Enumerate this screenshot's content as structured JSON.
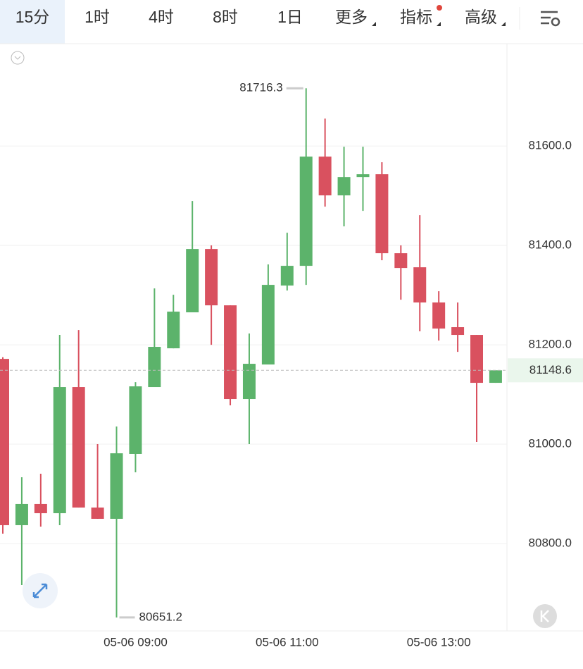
{
  "toolbar": {
    "tabs": [
      "15分",
      "1时",
      "4时",
      "8时",
      "1日",
      "更多",
      "指标",
      "高级"
    ]
  },
  "chart_data": {
    "type": "candlestick",
    "categories": [
      null,
      null,
      null,
      null,
      null,
      null,
      null,
      "05-06 09:00",
      null,
      null,
      null,
      null,
      null,
      null,
      null,
      "05-06 11:00",
      null,
      null,
      null,
      null,
      null,
      null,
      null,
      "05-06 13:00",
      null,
      null,
      null
    ],
    "open": [
      81171.6,
      80836.9,
      80879.5,
      80861,
      81114.9,
      80872.4,
      80849.7,
      80980.2,
      81114.9,
      81192.9,
      81265.3,
      81392.9,
      81279.4,
      81090.8,
      81160.3,
      81319.2,
      81358.9,
      81578.7,
      81500.7,
      81537.6,
      81543.3,
      81384.4,
      81356,
      81285.1,
      81235.5,
      81219.9,
      81123.4
    ],
    "high": [
      81175,
      80933.3,
      80940.4,
      81219.9,
      81229.8,
      81000,
      81035.5,
      81124.8,
      81313.5,
      81300.7,
      81489.4,
      81400,
      81279.4,
      81222.7,
      81361.7,
      81425.5,
      81716.3,
      81655.3,
      81598.6,
      81598.6,
      81567.4,
      81400,
      81461,
      81307.8,
      81285.1,
      81219.9,
      81148.6
    ],
    "low": [
      80819.9,
      80716.3,
      80834,
      80836.9,
      80872.4,
      80849.7,
      80651.2,
      80943.3,
      81114.9,
      81192.9,
      81265.3,
      81200,
      81078,
      81000,
      81160.3,
      81309.2,
      81320.6,
      81478,
      81438.3,
      81469.5,
      81370.2,
      81290.8,
      81227,
      81208.5,
      81185.8,
      81004.3,
      81123.4
    ],
    "close": [
      80836.9,
      80879.5,
      80861,
      81114.9,
      80872.4,
      80849.7,
      80981.6,
      81116.3,
      81195.8,
      81266.7,
      81392.9,
      81279.4,
      81090.8,
      81161.7,
      81320.6,
      81358.9,
      81578.7,
      81500.7,
      81537.6,
      81543.3,
      81384.4,
      81354.6,
      81285.1,
      81232.6,
      81219.9,
      81123.4,
      81148.6
    ],
    "up_color": "#5cb36b",
    "down_color": "#d9515f",
    "ylim": [
      80624,
      81806
    ],
    "yticks": [
      {
        "value": 81600,
        "label": "81600.0"
      },
      {
        "value": 81400,
        "label": "81400.0"
      },
      {
        "value": 81200,
        "label": "81200.0"
      },
      {
        "value": 81000,
        "label": "81000.0"
      },
      {
        "value": 80800,
        "label": "80800.0"
      }
    ],
    "grid": true
  }
}
